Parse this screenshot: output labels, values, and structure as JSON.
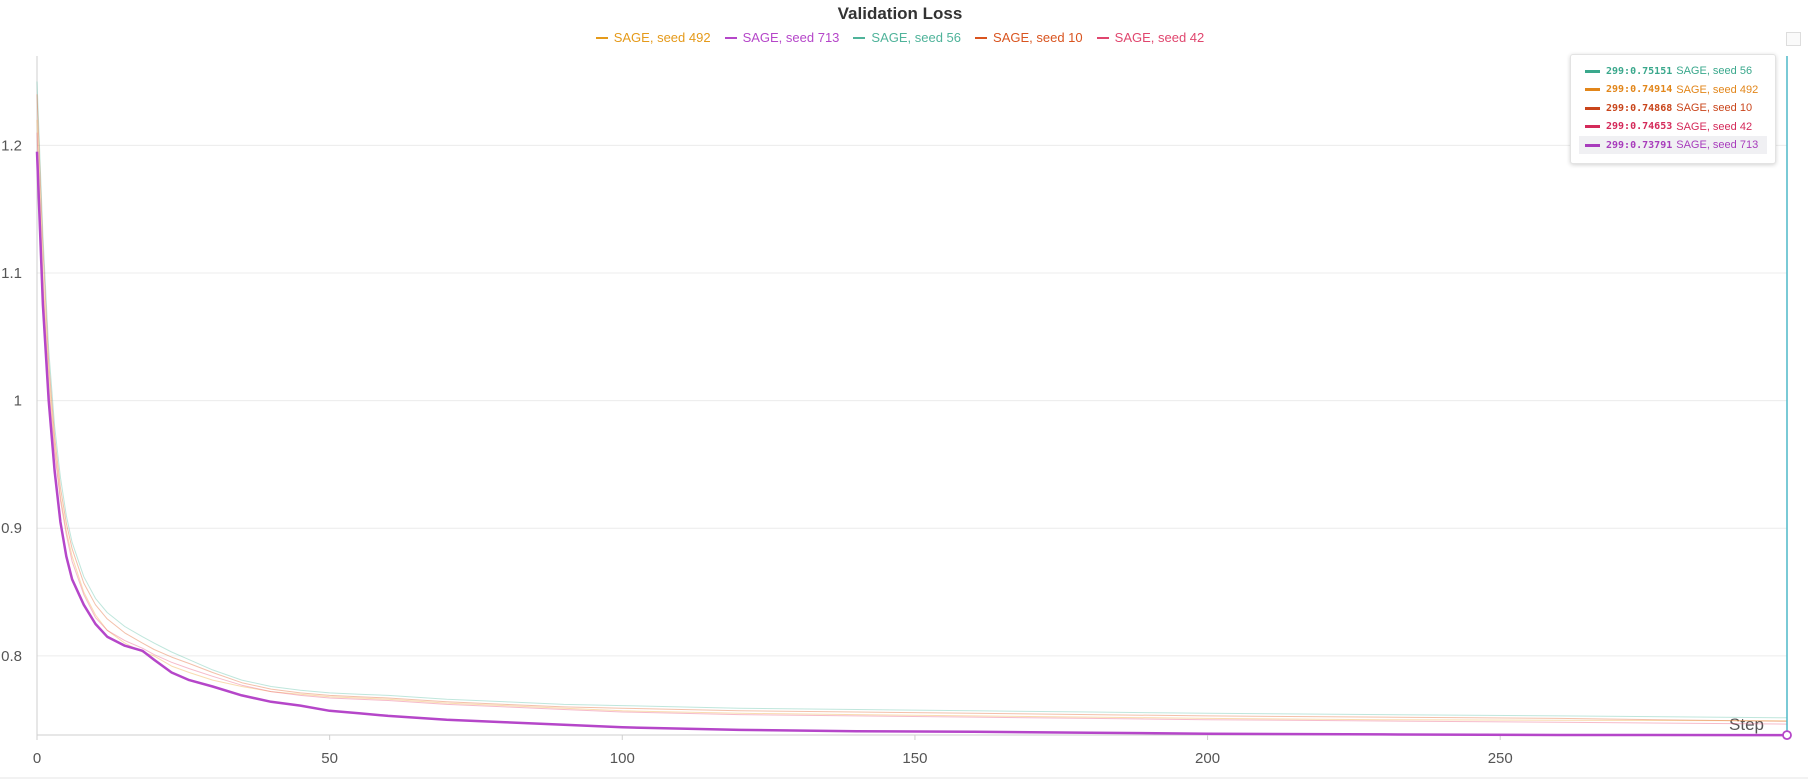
{
  "chart_data": {
    "type": "line",
    "title": "Validation Loss",
    "xlabel": "Step",
    "ylabel": "",
    "xlim": [
      0,
      299
    ],
    "ylim": [
      0.738,
      1.27
    ],
    "x_ticks": [
      0,
      50,
      100,
      150,
      200,
      250
    ],
    "y_ticks": [
      0.8,
      0.9,
      1,
      1.1,
      1.2
    ],
    "grid": true,
    "legend": "top-center",
    "x": [
      0,
      1,
      2,
      3,
      4,
      5,
      6,
      8,
      10,
      12,
      15,
      18,
      20,
      23,
      26,
      30,
      35,
      40,
      45,
      50,
      55,
      60,
      70,
      80,
      90,
      100,
      120,
      140,
      160,
      180,
      200,
      230,
      260,
      299
    ],
    "series": [
      {
        "name": "SAGE, seed 492",
        "color": "#f0a83a",
        "width": 1,
        "opacity": 0.4,
        "values": [
          1.22,
          1.1,
          1.02,
          0.965,
          0.925,
          0.898,
          0.878,
          0.85,
          0.832,
          0.82,
          0.81,
          0.803,
          0.8,
          0.792,
          0.787,
          0.781,
          0.776,
          0.772,
          0.77,
          0.768,
          0.767,
          0.766,
          0.763,
          0.761,
          0.759,
          0.757,
          0.755,
          0.754,
          0.753,
          0.752,
          0.751,
          0.75,
          0.7495,
          0.74914
        ]
      },
      {
        "name": "SAGE, seed 713",
        "color": "#b546c9",
        "width": 2.5,
        "opacity": 1,
        "values": [
          1.195,
          1.075,
          1.0,
          0.945,
          0.905,
          0.878,
          0.86,
          0.84,
          0.825,
          0.815,
          0.808,
          0.804,
          0.797,
          0.787,
          0.781,
          0.776,
          0.769,
          0.764,
          0.761,
          0.757,
          0.755,
          0.753,
          0.75,
          0.748,
          0.746,
          0.744,
          0.742,
          0.741,
          0.7405,
          0.7398,
          0.739,
          0.7385,
          0.738,
          0.73791
        ]
      },
      {
        "name": "SAGE, seed 56",
        "color": "#5fc0a8",
        "width": 1,
        "opacity": 0.4,
        "values": [
          1.25,
          1.13,
          1.04,
          0.98,
          0.94,
          0.91,
          0.889,
          0.862,
          0.845,
          0.834,
          0.823,
          0.815,
          0.81,
          0.803,
          0.797,
          0.789,
          0.781,
          0.776,
          0.773,
          0.771,
          0.77,
          0.769,
          0.766,
          0.764,
          0.762,
          0.761,
          0.759,
          0.758,
          0.757,
          0.756,
          0.755,
          0.754,
          0.753,
          0.75151
        ]
      },
      {
        "name": "SAGE, seed 10",
        "color": "#e0622a",
        "width": 1,
        "opacity": 0.4,
        "values": [
          1.24,
          1.12,
          1.03,
          0.972,
          0.932,
          0.904,
          0.884,
          0.857,
          0.84,
          0.829,
          0.818,
          0.81,
          0.805,
          0.799,
          0.794,
          0.787,
          0.779,
          0.774,
          0.771,
          0.769,
          0.768,
          0.767,
          0.764,
          0.762,
          0.76,
          0.759,
          0.757,
          0.756,
          0.755,
          0.754,
          0.753,
          0.752,
          0.751,
          0.74868
        ]
      },
      {
        "name": "SAGE, seed 42",
        "color": "#e8557a",
        "width": 1,
        "opacity": 0.4,
        "values": [
          1.21,
          1.09,
          1.01,
          0.96,
          0.922,
          0.895,
          0.874,
          0.848,
          0.83,
          0.82,
          0.812,
          0.806,
          0.801,
          0.795,
          0.79,
          0.784,
          0.777,
          0.772,
          0.769,
          0.767,
          0.766,
          0.765,
          0.762,
          0.76,
          0.758,
          0.756,
          0.754,
          0.753,
          0.752,
          0.751,
          0.75,
          0.749,
          0.748,
          0.74653
        ]
      }
    ],
    "tooltip": {
      "rows": [
        {
          "step": "299:",
          "value": "0.75151",
          "name": "SAGE, seed 56",
          "color": "#3aa88c",
          "highlight": false
        },
        {
          "step": "299:",
          "value": "0.74914",
          "name": "SAGE, seed 492",
          "color": "#e2861a",
          "highlight": false
        },
        {
          "step": "299:",
          "value": "0.74868",
          "name": "SAGE, seed 10",
          "color": "#c9451b",
          "highlight": false
        },
        {
          "step": "299:",
          "value": "0.74653",
          "name": "SAGE, seed 42",
          "color": "#d42a5a",
          "highlight": false
        },
        {
          "step": "299:",
          "value": "0.73791",
          "name": "SAGE, seed 713",
          "color": "#a83cbc",
          "highlight": true
        }
      ]
    },
    "hover_step": 299
  },
  "legend_colors": {
    "SAGE, seed 492": "#e59a1a",
    "SAGE, seed 713": "#b546c9",
    "SAGE, seed 56": "#4fb39a",
    "SAGE, seed 10": "#d9541f",
    "SAGE, seed 42": "#e0466e"
  }
}
